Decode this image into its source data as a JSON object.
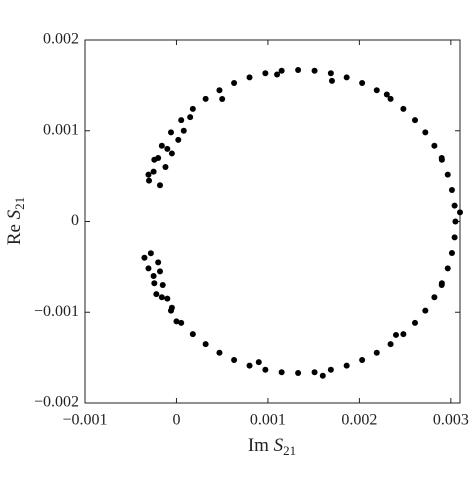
{
  "chart_data": {
    "type": "scatter",
    "xlabel": [
      "Im",
      "S",
      "21"
    ],
    "ylabel": [
      "Re",
      "S",
      "21"
    ],
    "color": "#000000",
    "xlim": [
      -0.001,
      0.0031
    ],
    "ylim": [
      -0.002,
      0.002
    ],
    "xticks": [
      {
        "value": -0.001,
        "label": "−0.001"
      },
      0,
      0.001,
      0.002,
      0.003
    ],
    "yticks": [
      {
        "value": -0.002,
        "label": "−0.002"
      },
      {
        "value": -0.001,
        "label": "−0.001"
      },
      0,
      0.001,
      0.002
    ],
    "x": [
      -0.000306,
      -0.000242,
      -0.00016,
      -6e-05,
      5.2e-05,
      0.000179,
      0.000319,
      0.00047,
      0.00063,
      0.000799,
      0.000972,
      0.00115,
      0.00133,
      0.00151,
      0.001688,
      0.001861,
      0.00203,
      0.00219,
      0.002341,
      0.002481,
      0.002608,
      0.002721,
      0.00282,
      0.002902,
      0.002966,
      0.003012,
      0.003041,
      0.00305,
      0.003041,
      0.003012,
      0.002966,
      0.002902,
      0.00282,
      0.002721,
      0.002608,
      0.002481,
      0.002341,
      0.00219,
      0.00203,
      0.001861,
      0.001688,
      0.00151,
      0.00133,
      0.00115,
      0.000972,
      0.000799,
      0.00063,
      0.00047,
      0.000319,
      0.000179,
      5.2e-05,
      -6e-05,
      -0.00016,
      -0.000242,
      -0.000306,
      -0.00035,
      -0.00028,
      -0.0002,
      -0.00025,
      -0.00015,
      -0.00018,
      -0.0001,
      -0.00022,
      -5e-05,
      0,
      -0.0003,
      -0.00025,
      -0.00018,
      -0.00012,
      -0.0002,
      -0.0001,
      -5e-05,
      2e-05,
      8e-05,
      0.00015,
      0.0009,
      0.0016,
      0.0024,
      0.0029,
      0.0031,
      0.0029,
      0.0023,
      0.0017,
      0.0011,
      0.0005
    ],
    "values": [
      -0.000516,
      -0.00068,
      -0.000835,
      -0.000982,
      -0.001117,
      -0.001241,
      -0.001351,
      -0.001446,
      -0.001526,
      -0.001588,
      -0.001633,
      -0.001661,
      -0.00167,
      -0.001661,
      -0.001633,
      -0.001588,
      -0.001526,
      -0.001446,
      -0.001351,
      -0.001241,
      -0.001117,
      -0.000982,
      -0.000835,
      -0.00068,
      -0.000516,
      -0.000347,
      -0.000175,
      0,
      0.000175,
      0.000347,
      0.000516,
      0.00068,
      0.000835,
      0.000982,
      0.001117,
      0.001241,
      0.001351,
      0.001446,
      0.001526,
      0.001588,
      0.001633,
      0.001661,
      0.00167,
      0.001661,
      0.001633,
      0.001588,
      0.001526,
      0.001446,
      0.001351,
      0.001241,
      0.001117,
      0.000982,
      0.000835,
      0.00068,
      0.000516,
      -0.0004,
      -0.00035,
      -0.00045,
      -0.0006,
      -0.0007,
      -0.00055,
      -0.00085,
      -0.0008,
      -0.00095,
      -0.0011,
      0.00045,
      0.00055,
      0.0004,
      0.0006,
      0.0007,
      0.0008,
      0.00075,
      0.0009,
      0.001,
      0.00115,
      -0.00155,
      -0.0017,
      -0.00125,
      -0.0007,
      0.0001,
      0.0007,
      0.0014,
      0.00155,
      0.00162,
      0.00135
    ]
  }
}
